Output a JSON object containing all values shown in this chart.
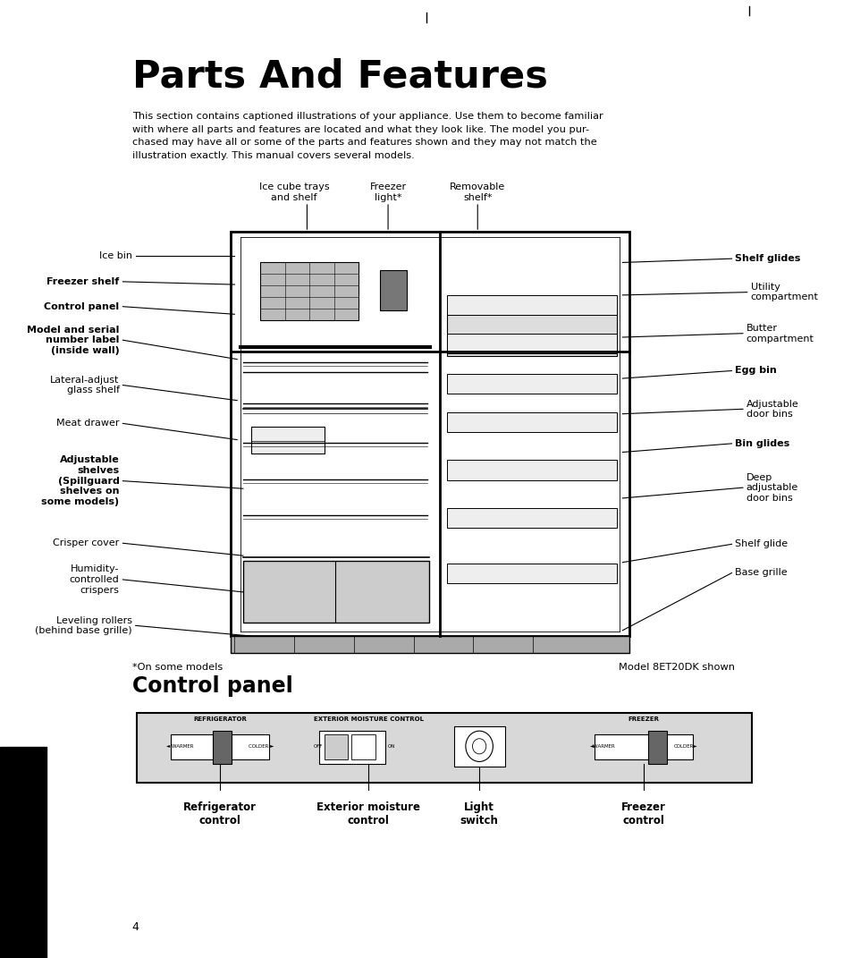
{
  "title": "Parts And Features",
  "intro_text": "This section contains captioned illustrations of your appliance. Use them to become familiar\nwith where all parts and features are located and what they look like. The model you pur-\nchased may have all or some of the parts and features shown and they may not match the\nillustration exactly. This manual covers several models.",
  "section2_title": "Control panel",
  "footnote_left": "*On some models",
  "footnote_right": "Model 8ET20DK shown",
  "page_number": "4",
  "bg_color": "#ffffff",
  "text_color": "#000000",
  "line_color": "#000000"
}
